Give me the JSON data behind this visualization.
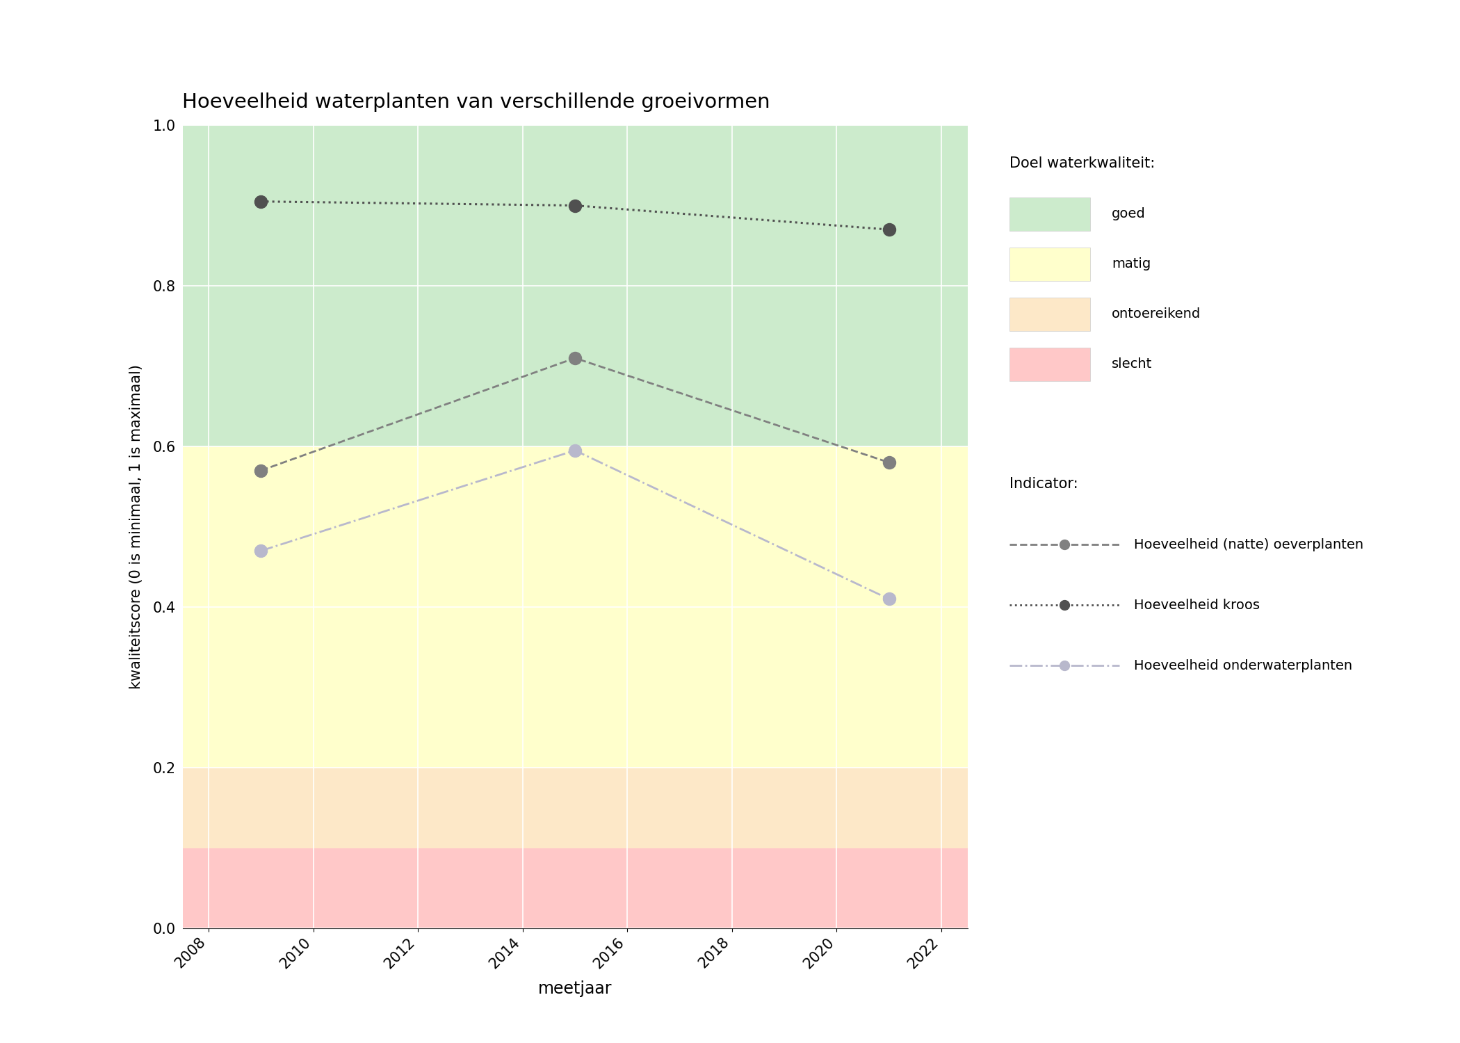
{
  "title": "Hoeveelheid waterplanten van verschillende groeivormen",
  "xlabel": "meetjaar",
  "ylabel": "kwaliteitscore (0 is minimaal, 1 is maximaal)",
  "xlim": [
    2007.5,
    2022.5
  ],
  "ylim": [
    0.0,
    1.0
  ],
  "xticks": [
    2008,
    2010,
    2012,
    2014,
    2016,
    2018,
    2020,
    2022
  ],
  "yticks": [
    0.0,
    0.2,
    0.4,
    0.6,
    0.8,
    1.0
  ],
  "bg_colors": [
    {
      "label": "goed",
      "color": "#ccebcc",
      "ymin": 0.6,
      "ymax": 1.0
    },
    {
      "label": "matig",
      "color": "#ffffcc",
      "ymin": 0.2,
      "ymax": 0.6
    },
    {
      "label": "ontoereikend",
      "color": "#fde8c8",
      "ymin": 0.1,
      "ymax": 0.2
    },
    {
      "label": "slecht",
      "color": "#ffc8c8",
      "ymin": 0.0,
      "ymax": 0.1
    }
  ],
  "series": {
    "oeverplanten": {
      "years": [
        2009,
        2015,
        2021
      ],
      "values": [
        0.57,
        0.71,
        0.58
      ],
      "color": "#808080",
      "linestyle": "--",
      "linewidth": 2.0,
      "markersize": 13,
      "label": "Hoeveelheid (natte) oeverplanten"
    },
    "kroos": {
      "years": [
        2009,
        2015,
        2021
      ],
      "values": [
        0.905,
        0.9,
        0.87
      ],
      "color": "#505050",
      "linestyle": ":",
      "linewidth": 2.2,
      "markersize": 13,
      "label": "Hoeveelheid kroos"
    },
    "onderwaterplanten": {
      "years": [
        2009,
        2015,
        2021
      ],
      "values": [
        0.47,
        0.595,
        0.41
      ],
      "color": "#b8b8cc",
      "linestyle": "-.",
      "linewidth": 2.0,
      "markersize": 13,
      "label": "Hoeveelheid onderwaterplanten"
    }
  },
  "legend_doel_title": "Doel waterkwaliteit:",
  "legend_indicator_title": "Indicator:",
  "background_color": "#ffffff",
  "fig_width": 21.0,
  "fig_height": 15.0
}
